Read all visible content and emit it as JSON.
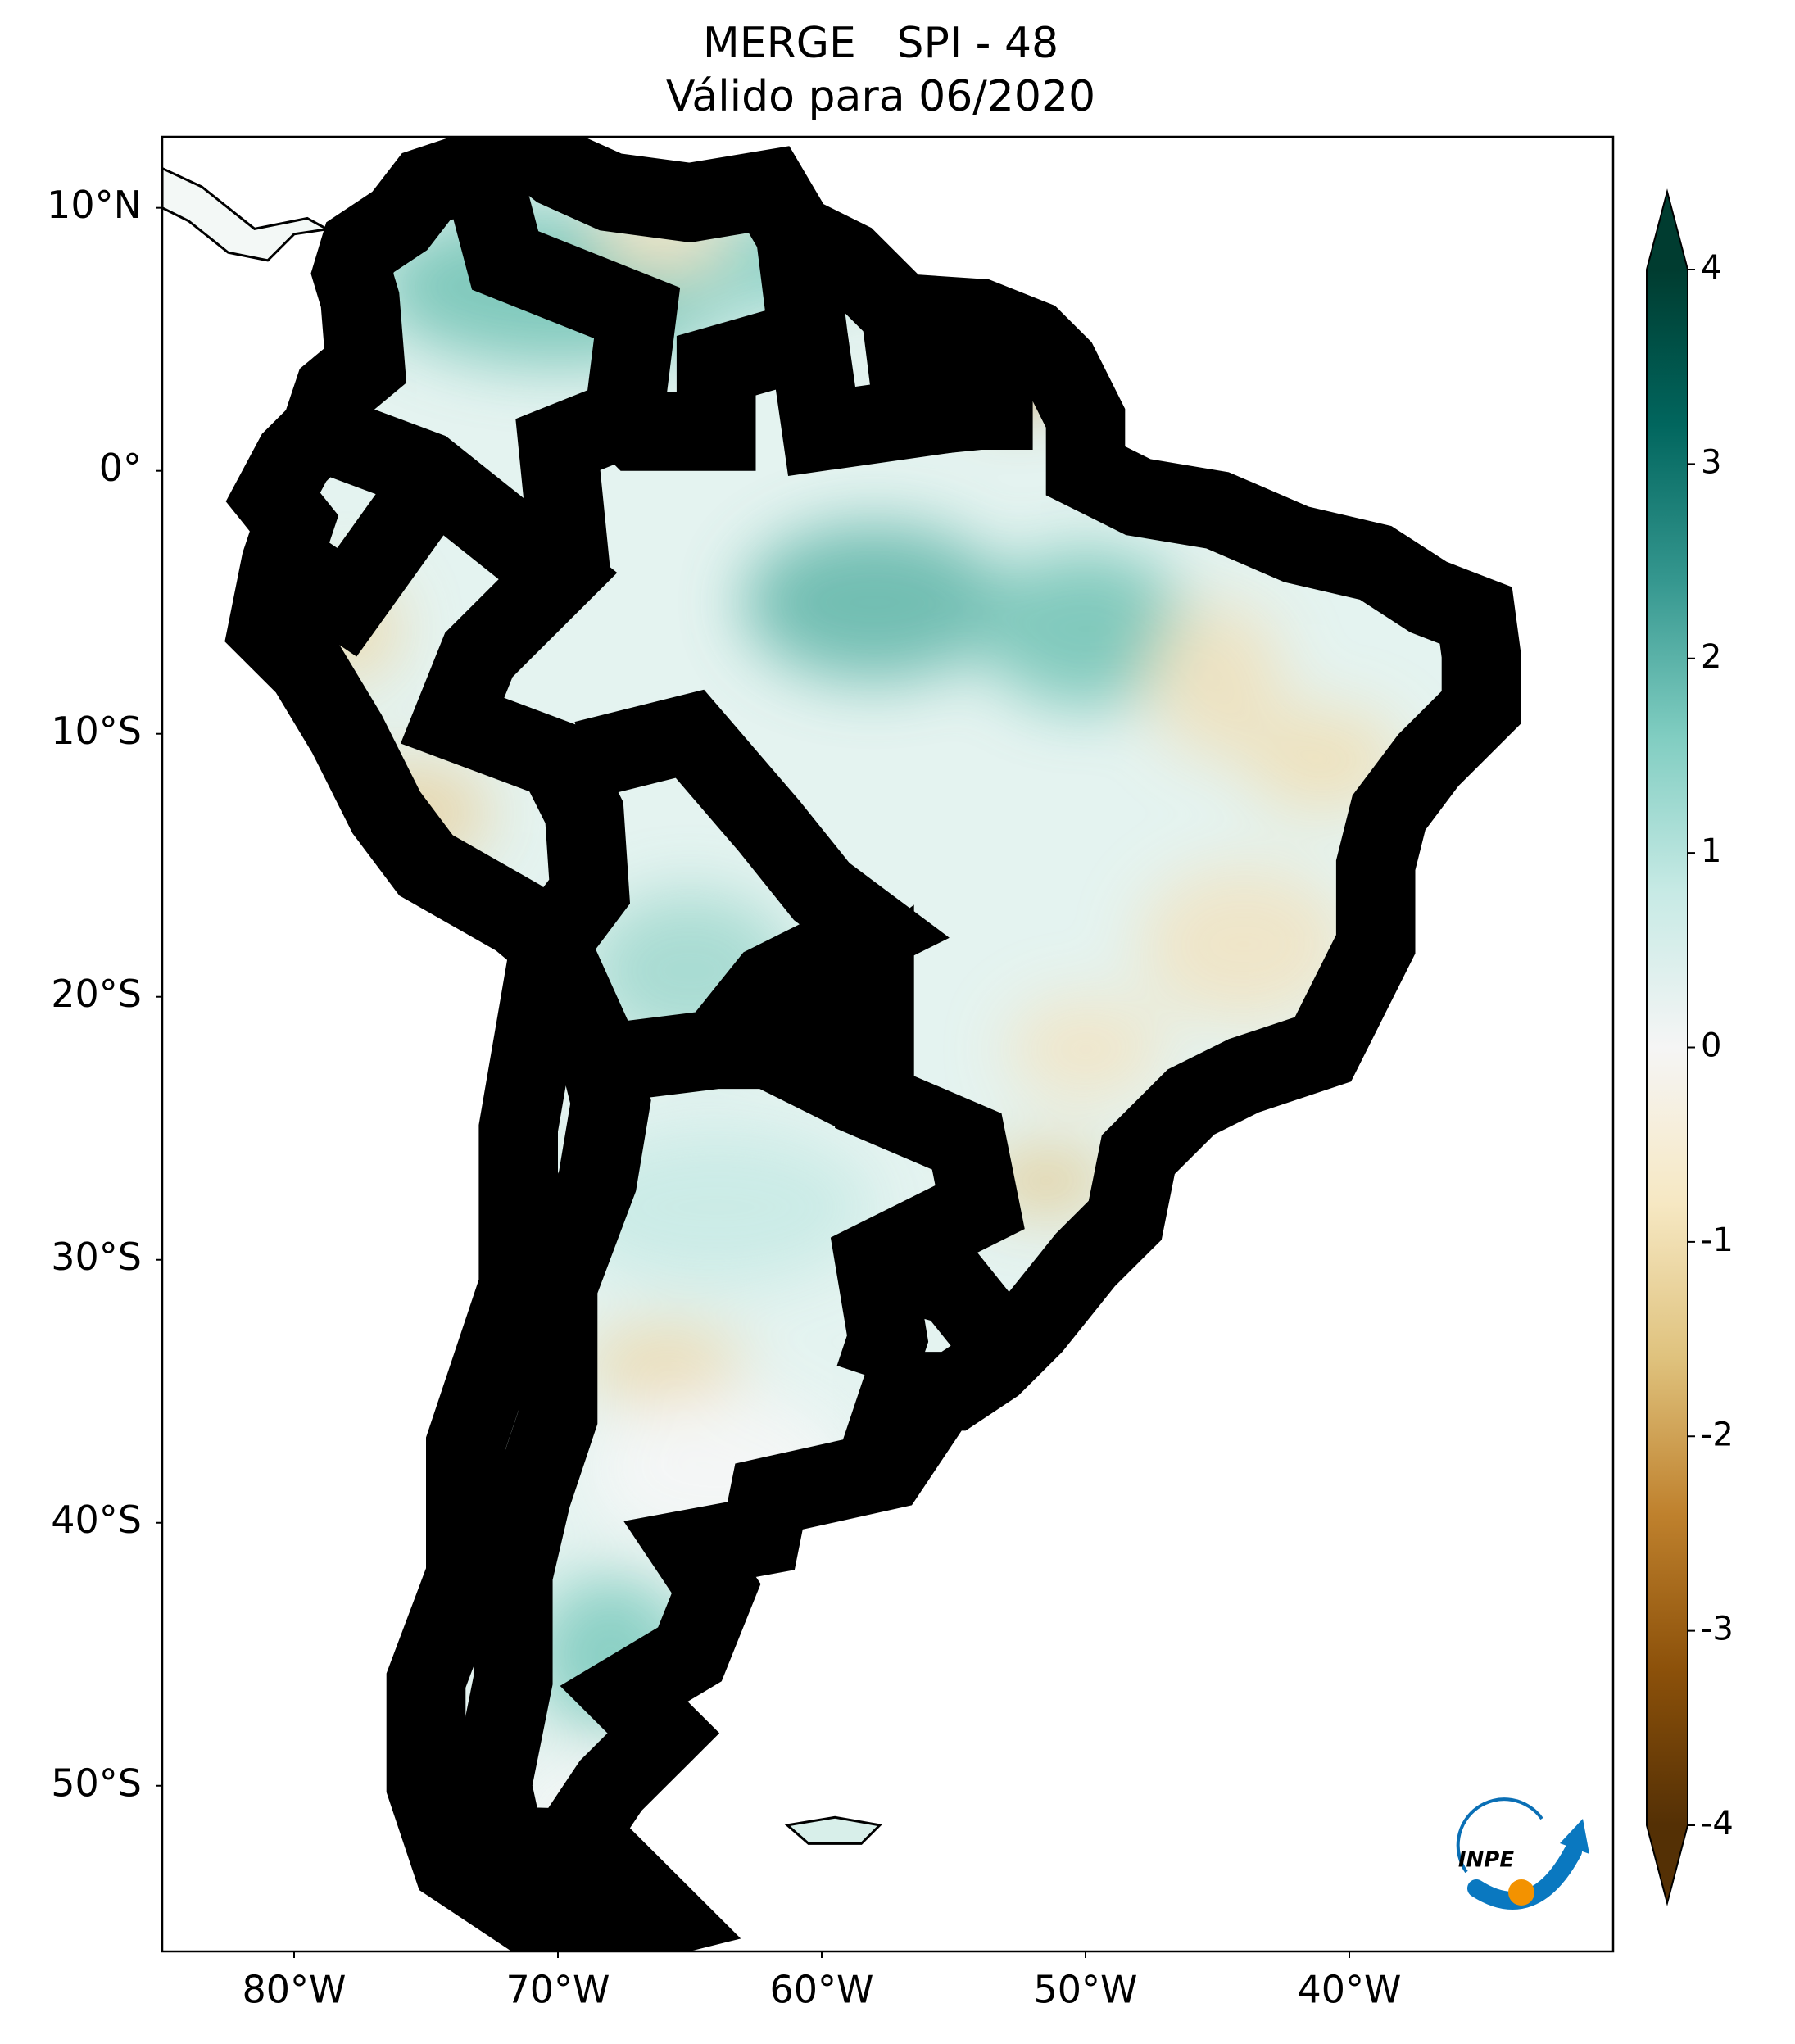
{
  "chart_data": {
    "type": "map",
    "title": "MERGE   SPI - 48",
    "subtitle": "Válido para 06/2020",
    "xlim": [
      -85,
      -30
    ],
    "ylim": [
      -56.3,
      12.7
    ],
    "xticks": [
      {
        "value": -80,
        "label": "80°W"
      },
      {
        "value": -70,
        "label": "70°W"
      },
      {
        "value": -60,
        "label": "60°W"
      },
      {
        "value": -50,
        "label": "50°W"
      },
      {
        "value": -40,
        "label": "40°W"
      }
    ],
    "yticks": [
      {
        "value": 10,
        "label": "10°N"
      },
      {
        "value": 0,
        "label": "0°"
      },
      {
        "value": -10,
        "label": "10°S"
      },
      {
        "value": -20,
        "label": "20°S"
      },
      {
        "value": -30,
        "label": "30°S"
      },
      {
        "value": -40,
        "label": "40°S"
      },
      {
        "value": -50,
        "label": "50°S"
      }
    ],
    "clim": [
      -4,
      4
    ],
    "cticks": [
      -4,
      -3,
      -2,
      -1,
      0,
      1,
      2,
      3,
      4
    ],
    "colormap": [
      "#543005",
      "#8c510a",
      "#bf812d",
      "#dfc27d",
      "#f6e8c3",
      "#f5f5f5",
      "#c7eae5",
      "#80cdc1",
      "#35978f",
      "#01665e",
      "#003c30"
    ],
    "logo": "INPE"
  }
}
